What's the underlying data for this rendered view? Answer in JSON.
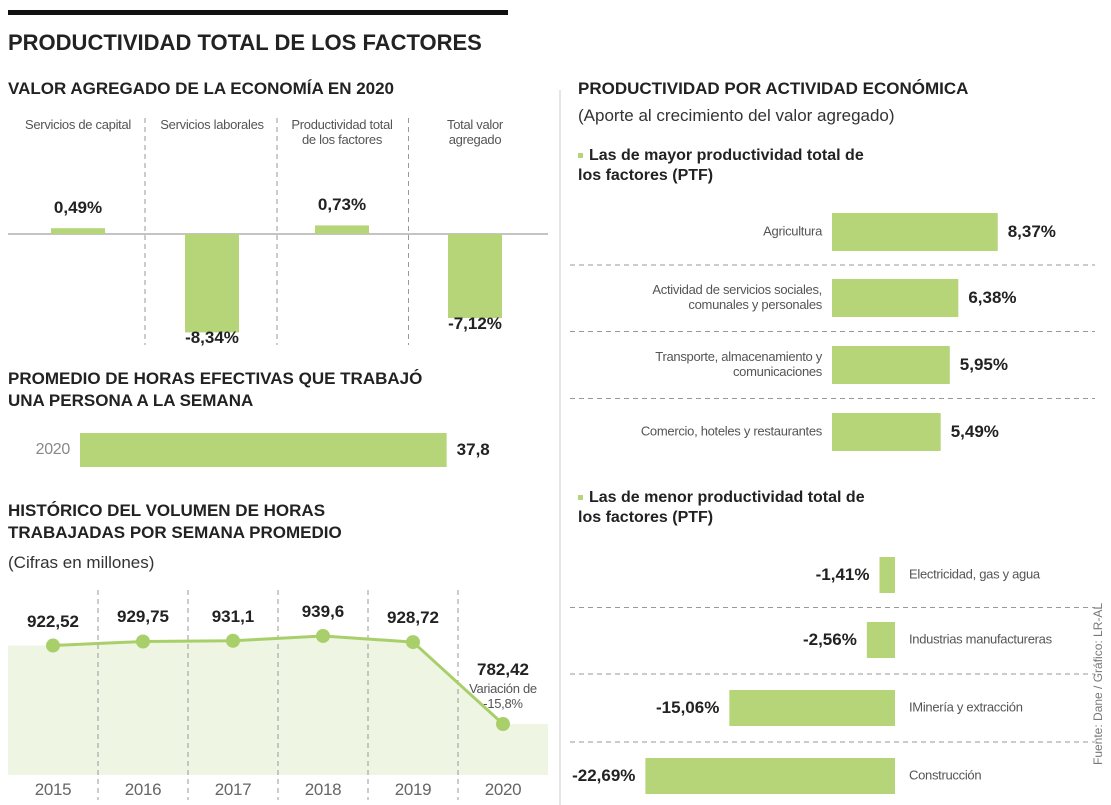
{
  "title": "PRODUCTIVIDAD TOTAL DE LOS FACTORES",
  "source": "Fuente: Dane / Gráfico: LR-AL",
  "chart_data": [
    {
      "type": "bar",
      "title": "VALOR AGREGADO DE LA ECONOMÍA EN 2020",
      "categories": [
        "Servicios de capital",
        "Servicios laborales",
        "Productividad total de los factores",
        "Total valor agregado"
      ],
      "values": [
        0.49,
        -8.34,
        0.73,
        -7.12
      ],
      "value_labels": [
        "0,49%",
        "-8,34%",
        "0,73%",
        "-7,12%"
      ],
      "color": "#b5d578"
    },
    {
      "type": "barh",
      "title": "PROMEDIO DE HORAS EFECTIVAS QUE TRABAJÓ UNA PERSONA A LA SEMANA",
      "categories": [
        "2020"
      ],
      "values": [
        37.8
      ],
      "value_labels": [
        "37,8"
      ],
      "color": "#b5d578"
    },
    {
      "type": "line",
      "title": "HISTÓRICO DEL VOLUMEN DE HORAS TRABAJADAS POR SEMANA PROMEDIO",
      "subtitle": "(Cifras en millones)",
      "categories": [
        "2015",
        "2016",
        "2017",
        "2018",
        "2019",
        "2020"
      ],
      "values": [
        922.52,
        929.75,
        931.1,
        939.6,
        928.72,
        782.42
      ],
      "value_labels": [
        "922,52",
        "929,75",
        "931,1",
        "939,6",
        "928,72",
        "782,42"
      ],
      "annotation": "Variación de -15,8%",
      "color": "#a9cf6b"
    },
    {
      "type": "barh",
      "title": "PRODUCTIVIDAD POR ACTIVIDAD ECONÓMICA",
      "subtitle": "(Aporte al crecimiento del valor agregado)",
      "group": "Las de mayor productividad total de los factores (PTF)",
      "categories": [
        "Agricultura",
        "Actividad de servicios sociales, comunales y personales",
        "Transporte, almacenamiento y comunicaciones",
        "Comercio, hoteles y restaurantes"
      ],
      "values": [
        8.37,
        6.38,
        5.95,
        5.49
      ],
      "value_labels": [
        "8,37%",
        "6,38%",
        "5,95%",
        "5,49%"
      ],
      "color": "#b5d578"
    },
    {
      "type": "barh",
      "group": "Las de menor productividad total de los factores (PTF)",
      "categories": [
        "Electricidad, gas y agua",
        "Industrias manufactureras",
        "IMinería y extracción",
        "Construcción"
      ],
      "values": [
        -1.41,
        -2.56,
        -15.06,
        -22.69
      ],
      "value_labels": [
        "-1,41%",
        "-2,56%",
        "-15,06%",
        "-22,69%"
      ],
      "color": "#b5d578"
    }
  ]
}
